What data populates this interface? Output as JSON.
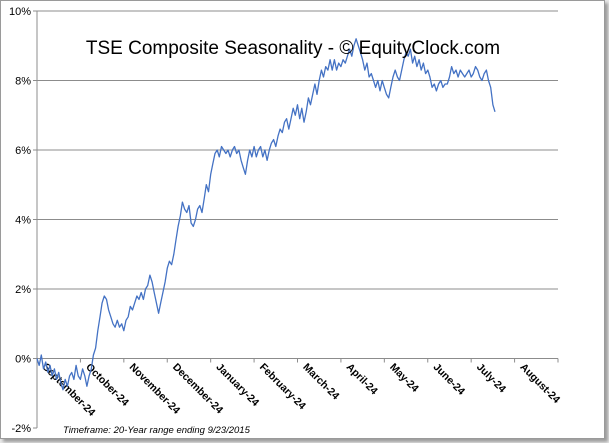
{
  "chart_data": {
    "type": "line",
    "title": "TSE Composite Seasonality - © EquityClock.com",
    "footnote": "Timeframe: 20-Year range ending 9/23/2015",
    "ylim": [
      -2,
      10
    ],
    "y_ticks": [
      "-2%",
      "0%",
      "2%",
      "4%",
      "6%",
      "8%",
      "10%"
    ],
    "x_ticks": [
      "September-24",
      "October-24",
      "November-24",
      "December-24",
      "January-24",
      "February-24",
      "March-24",
      "April-24",
      "May-24",
      "June-24",
      "July-24",
      "August-24"
    ],
    "grid": true,
    "line_color": "#4472c4",
    "series": [
      {
        "values": [
          [
            0,
            0.0
          ],
          [
            0.05,
            -0.2
          ],
          [
            0.1,
            0.1
          ],
          [
            0.15,
            -0.3
          ],
          [
            0.2,
            -0.1
          ],
          [
            0.25,
            -0.4
          ],
          [
            0.3,
            -0.2
          ],
          [
            0.35,
            -0.5
          ],
          [
            0.4,
            -0.3
          ],
          [
            0.45,
            -0.6
          ],
          [
            0.5,
            -0.4
          ],
          [
            0.55,
            -0.7
          ],
          [
            0.6,
            -0.9
          ],
          [
            0.65,
            -0.6
          ],
          [
            0.7,
            -0.8
          ],
          [
            0.75,
            -0.5
          ],
          [
            0.8,
            -0.4
          ],
          [
            0.85,
            -0.6
          ],
          [
            0.9,
            -0.2
          ],
          [
            0.95,
            -0.5
          ],
          [
            1.0,
            -0.6
          ],
          [
            1.05,
            -0.3
          ],
          [
            1.1,
            -0.5
          ],
          [
            1.15,
            -0.8
          ],
          [
            1.2,
            -0.5
          ],
          [
            1.25,
            -0.3
          ],
          [
            1.3,
            0.1
          ],
          [
            1.35,
            0.3
          ],
          [
            1.4,
            0.8
          ],
          [
            1.45,
            1.2
          ],
          [
            1.5,
            1.6
          ],
          [
            1.55,
            1.8
          ],
          [
            1.6,
            1.7
          ],
          [
            1.65,
            1.4
          ],
          [
            1.7,
            1.2
          ],
          [
            1.75,
            1.0
          ],
          [
            1.8,
            0.9
          ],
          [
            1.85,
            1.1
          ],
          [
            1.9,
            0.9
          ],
          [
            1.95,
            1.0
          ],
          [
            2.0,
            0.8
          ],
          [
            2.05,
            1.1
          ],
          [
            2.1,
            1.2
          ],
          [
            2.15,
            1.5
          ],
          [
            2.2,
            1.4
          ],
          [
            2.25,
            1.6
          ],
          [
            2.3,
            1.8
          ],
          [
            2.35,
            1.7
          ],
          [
            2.4,
            1.9
          ],
          [
            2.45,
            1.7
          ],
          [
            2.5,
            2.0
          ],
          [
            2.55,
            2.1
          ],
          [
            2.6,
            2.4
          ],
          [
            2.65,
            2.2
          ],
          [
            2.7,
            1.9
          ],
          [
            2.75,
            1.6
          ],
          [
            2.8,
            1.3
          ],
          [
            2.85,
            1.6
          ],
          [
            2.9,
            1.9
          ],
          [
            2.95,
            2.2
          ],
          [
            3.0,
            2.6
          ],
          [
            3.05,
            2.8
          ],
          [
            3.1,
            2.7
          ],
          [
            3.15,
            3.0
          ],
          [
            3.2,
            3.4
          ],
          [
            3.25,
            3.8
          ],
          [
            3.3,
            4.1
          ],
          [
            3.35,
            4.5
          ],
          [
            3.4,
            4.3
          ],
          [
            3.45,
            4.2
          ],
          [
            3.5,
            4.4
          ],
          [
            3.55,
            3.9
          ],
          [
            3.6,
            3.8
          ],
          [
            3.65,
            4.0
          ],
          [
            3.7,
            4.3
          ],
          [
            3.75,
            4.4
          ],
          [
            3.8,
            4.2
          ],
          [
            3.85,
            4.6
          ],
          [
            3.9,
            5.0
          ],
          [
            3.95,
            4.8
          ],
          [
            4.0,
            5.3
          ],
          [
            4.05,
            5.6
          ],
          [
            4.1,
            5.9
          ],
          [
            4.15,
            6.0
          ],
          [
            4.2,
            5.8
          ],
          [
            4.25,
            6.1
          ],
          [
            4.3,
            6.0
          ],
          [
            4.35,
            5.9
          ],
          [
            4.4,
            6.0
          ],
          [
            4.45,
            5.8
          ],
          [
            4.5,
            6.0
          ],
          [
            4.55,
            6.1
          ],
          [
            4.6,
            5.9
          ],
          [
            4.65,
            6.0
          ],
          [
            4.7,
            5.7
          ],
          [
            4.75,
            5.5
          ],
          [
            4.8,
            5.3
          ],
          [
            4.85,
            5.7
          ],
          [
            4.9,
            6.0
          ],
          [
            4.95,
            5.8
          ],
          [
            5.0,
            6.1
          ],
          [
            5.05,
            5.8
          ],
          [
            5.1,
            6.0
          ],
          [
            5.15,
            6.1
          ],
          [
            5.2,
            5.8
          ],
          [
            5.25,
            6.0
          ],
          [
            5.3,
            5.7
          ],
          [
            5.35,
            6.0
          ],
          [
            5.4,
            6.2
          ],
          [
            5.45,
            6.3
          ],
          [
            5.5,
            6.1
          ],
          [
            5.55,
            6.4
          ],
          [
            5.6,
            6.6
          ],
          [
            5.65,
            6.5
          ],
          [
            5.7,
            6.8
          ],
          [
            5.75,
            6.9
          ],
          [
            5.8,
            6.6
          ],
          [
            5.85,
            6.9
          ],
          [
            5.9,
            7.2
          ],
          [
            5.95,
            7.0
          ],
          [
            6.0,
            7.3
          ],
          [
            6.05,
            6.9
          ],
          [
            6.1,
            7.2
          ],
          [
            6.15,
            6.8
          ],
          [
            6.2,
            7.1
          ],
          [
            6.25,
            7.5
          ],
          [
            6.3,
            7.3
          ],
          [
            6.35,
            7.6
          ],
          [
            6.4,
            7.9
          ],
          [
            6.45,
            7.6
          ],
          [
            6.5,
            8.0
          ],
          [
            6.55,
            8.3
          ],
          [
            6.6,
            8.1
          ],
          [
            6.65,
            8.4
          ],
          [
            6.7,
            8.3
          ],
          [
            6.75,
            8.6
          ],
          [
            6.8,
            8.3
          ],
          [
            6.85,
            8.6
          ],
          [
            6.9,
            8.3
          ],
          [
            6.95,
            8.5
          ],
          [
            7.0,
            8.4
          ],
          [
            7.05,
            8.6
          ],
          [
            7.1,
            8.5
          ],
          [
            7.15,
            8.7
          ],
          [
            7.2,
            8.9
          ],
          [
            7.25,
            8.7
          ],
          [
            7.3,
            9.0
          ],
          [
            7.35,
            9.2
          ],
          [
            7.4,
            9.0
          ],
          [
            7.45,
            8.8
          ],
          [
            7.5,
            8.6
          ],
          [
            7.55,
            8.3
          ],
          [
            7.6,
            8.5
          ],
          [
            7.65,
            8.1
          ],
          [
            7.7,
            8.2
          ],
          [
            7.75,
            8.0
          ],
          [
            7.8,
            7.8
          ],
          [
            7.85,
            8.0
          ],
          [
            7.9,
            7.7
          ],
          [
            7.95,
            8.0
          ],
          [
            8.0,
            7.8
          ],
          [
            8.05,
            7.6
          ],
          [
            8.1,
            7.5
          ],
          [
            8.15,
            7.8
          ],
          [
            8.2,
            8.1
          ],
          [
            8.25,
            8.3
          ],
          [
            8.3,
            8.1
          ],
          [
            8.35,
            8.0
          ],
          [
            8.4,
            8.3
          ],
          [
            8.45,
            8.6
          ],
          [
            8.5,
            8.8
          ],
          [
            8.55,
            8.7
          ],
          [
            8.6,
            8.9
          ],
          [
            8.65,
            8.5
          ],
          [
            8.7,
            8.7
          ],
          [
            8.75,
            8.4
          ],
          [
            8.8,
            8.6
          ],
          [
            8.85,
            8.3
          ],
          [
            8.9,
            8.5
          ],
          [
            8.95,
            8.2
          ],
          [
            9.0,
            8.3
          ],
          [
            9.05,
            8.1
          ],
          [
            9.1,
            7.8
          ],
          [
            9.15,
            7.9
          ],
          [
            9.2,
            7.7
          ],
          [
            9.25,
            7.9
          ],
          [
            9.3,
            8.0
          ],
          [
            9.35,
            7.8
          ],
          [
            9.4,
            7.9
          ],
          [
            9.45,
            7.9
          ],
          [
            9.5,
            8.1
          ],
          [
            9.55,
            8.4
          ],
          [
            9.6,
            8.2
          ],
          [
            9.65,
            8.3
          ],
          [
            9.7,
            8.1
          ],
          [
            9.75,
            8.3
          ],
          [
            9.8,
            8.2
          ],
          [
            9.85,
            8.1
          ],
          [
            9.9,
            8.2
          ],
          [
            9.95,
            8.3
          ],
          [
            10.0,
            8.1
          ],
          [
            10.05,
            8.2
          ],
          [
            10.1,
            8.4
          ],
          [
            10.15,
            8.3
          ],
          [
            10.2,
            8.1
          ],
          [
            10.25,
            8.0
          ],
          [
            10.3,
            8.2
          ],
          [
            10.35,
            8.3
          ],
          [
            10.4,
            8.0
          ],
          [
            10.45,
            7.8
          ],
          [
            10.5,
            7.3
          ],
          [
            10.55,
            7.1
          ]
        ]
      }
    ]
  }
}
